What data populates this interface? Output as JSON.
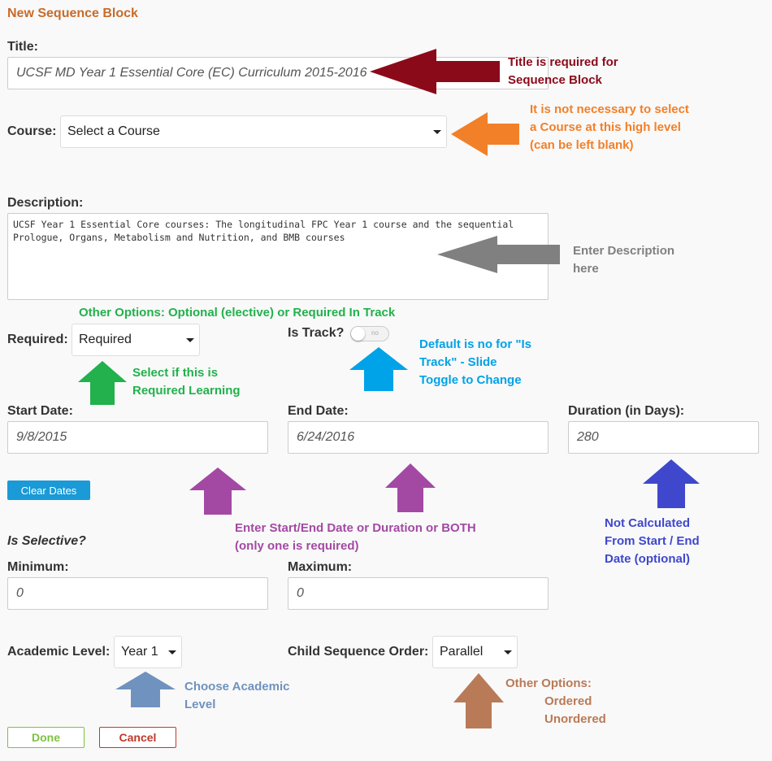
{
  "form": {
    "heading": "New Sequence Block",
    "title_label": "Title:",
    "title_value": "UCSF MD Year 1 Essential Core (EC) Curriculum 2015-2016",
    "course_label": "Course:",
    "course_value": "Select a Course",
    "description_label": "Description:",
    "description_value": "UCSF Year 1 Essential Core courses: The longitudinal FPC Year 1 course and the sequential Prologue, Organs, Metabolism and Nutrition, and BMB courses",
    "required_label": "Required:",
    "required_value": "Required",
    "is_track_label": "Is Track?",
    "is_track_state": "no",
    "start_date_label": "Start Date:",
    "start_date_value": "9/8/2015",
    "end_date_label": "End Date:",
    "end_date_value": "6/24/2016",
    "duration_label": "Duration (in Days):",
    "duration_value": "280",
    "clear_dates_label": "Clear Dates",
    "is_selective_label": "Is Selective?",
    "minimum_label": "Minimum:",
    "minimum_value": "0",
    "maximum_label": "Maximum:",
    "maximum_value": "0",
    "academic_level_label": "Academic Level:",
    "academic_level_value": "Year 1",
    "child_order_label": "Child Sequence Order:",
    "child_order_value": "Parallel",
    "done_label": "Done",
    "cancel_label": "Cancel"
  },
  "annotations": {
    "title_note": [
      "Title is required for",
      "Sequence Block"
    ],
    "course_note": [
      "It is not necessary to select",
      "a Course at this high level",
      "(can be left blank)"
    ],
    "description_note": [
      "Enter Description",
      "here"
    ],
    "other_options_note": "Other Options:  Optional (elective) or Required In Track",
    "required_note": [
      "Select if this is",
      "Required Learning"
    ],
    "track_note": [
      "Default is no for \"Is",
      "Track\" - Slide",
      "Toggle to Change"
    ],
    "dates_note": [
      "Enter Start/End Date or Duration or BOTH",
      "(only one is required)"
    ],
    "duration_note": [
      "Not Calculated",
      "From Start / End",
      "Date (optional)"
    ],
    "academic_note": [
      "Choose Academic",
      "Level"
    ],
    "order_note": [
      "Other Options:",
      "Ordered",
      "Unordered"
    ]
  },
  "colors": {
    "heading": "#c86b2a",
    "title_note": "#8b0a1a",
    "course_note": "#f28029",
    "description_note": "#808080",
    "required_note": "#22b14c",
    "track_note": "#00a2e8",
    "dates_note": "#a349a4",
    "duration_note": "#3f48cc",
    "academic_note": "#7092be",
    "order_note": "#b97a57",
    "clear_dates_btn": "#1a9ad6",
    "done_border": "#7fc241",
    "cancel_border": "#c0392b"
  }
}
